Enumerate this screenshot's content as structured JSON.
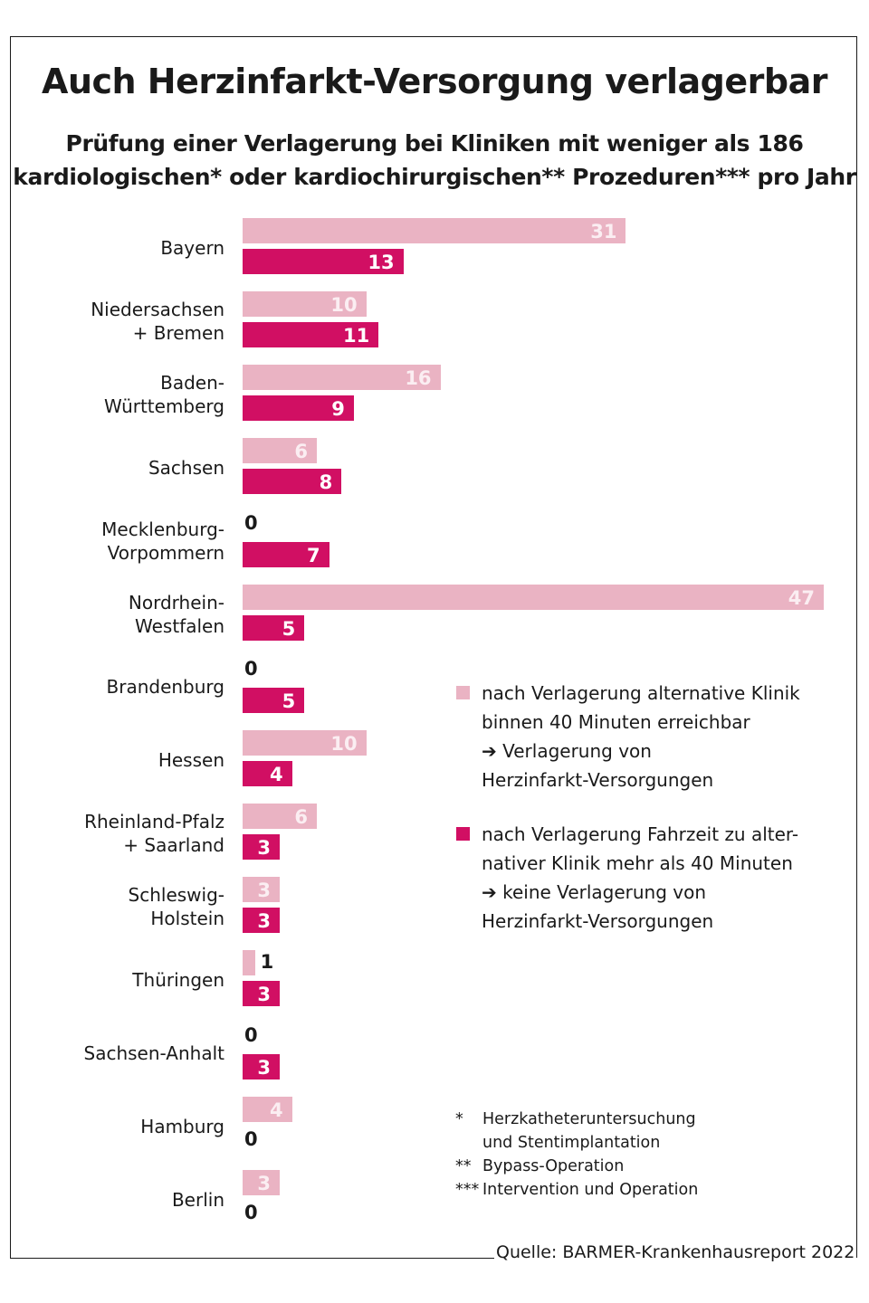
{
  "title": "Auch Herzinfarkt-Versorgung verlagerbar",
  "subtitle_lines": [
    "Prüfung einer Verlagerung bei Kliniken mit weniger als 186",
    "kardiologischen* oder kardiochirurgischen** Prozeduren*** pro Jahr"
  ],
  "chart_data": {
    "type": "bar",
    "orientation": "horizontal",
    "title": "Auch Herzinfarkt-Versorgung verlagerbar",
    "subtitle": "Prüfung einer Verlagerung bei Kliniken mit weniger als 186 kardiologischen* oder kardiochirurgischen** Prozeduren*** pro Jahr",
    "xlabel": "",
    "ylabel": "",
    "grid": false,
    "xlim": [
      0,
      47
    ],
    "legend_position": "right",
    "categories": [
      [
        "Bayern"
      ],
      [
        "Niedersachsen",
        "+ Bremen"
      ],
      [
        "Baden-",
        "Württemberg"
      ],
      [
        "Sachsen"
      ],
      [
        "Mecklenburg-",
        "Vorpommern"
      ],
      [
        "Nordrhein-",
        "Westfalen"
      ],
      [
        "Brandenburg"
      ],
      [
        "Hessen"
      ],
      [
        "Rheinland-Pfalz",
        "+ Saarland"
      ],
      [
        "Schleswig-",
        "Holstein"
      ],
      [
        "Thüringen"
      ],
      [
        "Sachsen-Anhalt"
      ],
      [
        "Hamburg"
      ],
      [
        "Berlin"
      ]
    ],
    "series": [
      {
        "name": "nach Verlagerung alternative Klinik binnen 40 Minuten erreichbar → Verlagerung von Herzinfarkt-Versorgungen",
        "color": "#eab3c3",
        "values": [
          31,
          10,
          16,
          6,
          0,
          47,
          0,
          10,
          6,
          3,
          1,
          0,
          4,
          3
        ]
      },
      {
        "name": "nach Verlagerung Fahrzeit zu alternativer Klinik mehr als 40 Minuten → keine Verlagerung von Herzinfarkt-Versorgungen",
        "color": "#d10f63",
        "values": [
          13,
          11,
          9,
          8,
          7,
          5,
          5,
          4,
          3,
          3,
          3,
          3,
          0,
          0
        ]
      }
    ]
  },
  "legend": [
    {
      "color": "#eab3c3",
      "lines": [
        "nach Verlagerung alternative Klinik",
        "binnen 40 Minuten erreichbar",
        "➔ Verlagerung von",
        "Herzinfarkt-Versorgungen"
      ]
    },
    {
      "color": "#d10f63",
      "lines": [
        "nach Verlagerung Fahrzeit zu alter-",
        "nativer Klinik mehr als 40 Minuten",
        "➔ keine Verlagerung von",
        "Herzinfarkt-Versorgungen"
      ]
    }
  ],
  "footnotes": [
    {
      "mark": "*",
      "lines": [
        "Herzkatheteruntersuchung",
        "und Stentimplantation"
      ]
    },
    {
      "mark": "**",
      "lines": [
        "Bypass-Operation"
      ]
    },
    {
      "mark": "***",
      "lines": [
        "Intervention und Operation"
      ]
    }
  ],
  "source": "Quelle: BARMER-Krankenhausreport 2022"
}
